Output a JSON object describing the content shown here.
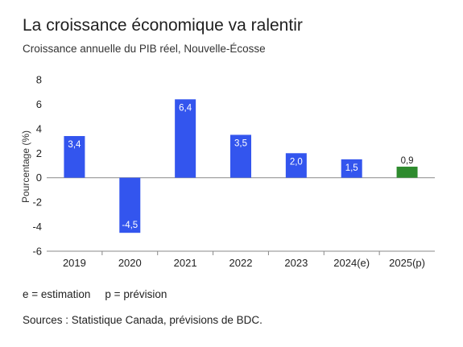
{
  "header": {
    "title": "La croissance économique va ralentir",
    "subtitle": "Croissance annuelle du PIB réel, Nouvelle-Écosse"
  },
  "legend": {
    "estimation": "e = estimation",
    "prevision": "p = prévision"
  },
  "source": "Sources : Statistique Canada, prévisions de BDC.",
  "colors": {
    "actual": "#3355ee",
    "forecast": "#2e8b2e",
    "axis": "#888888"
  },
  "chart_data": {
    "type": "bar",
    "title": "La croissance économique va ralentir",
    "subtitle": "Croissance annuelle du PIB réel, Nouvelle-Écosse",
    "ylabel": "Pourcentage (%)",
    "xlabel": "",
    "ylim": [
      -6,
      8
    ],
    "yticks": [
      8,
      6,
      4,
      2,
      0,
      -2,
      -4,
      -6
    ],
    "ytick_labels": [
      "8",
      "6",
      "4",
      "2",
      "0",
      "-2",
      "-4",
      "-6"
    ],
    "categories": [
      "2019",
      "2020",
      "2021",
      "2022",
      "2023",
      "2024(e)",
      "2025(p)"
    ],
    "values": [
      3.4,
      -4.5,
      6.4,
      3.5,
      2.0,
      1.5,
      0.9
    ],
    "value_labels": [
      "3,4",
      "-4,5",
      "6,4",
      "3,5",
      "2,0",
      "1,5",
      "0,9"
    ],
    "bar_kinds": [
      "actual",
      "actual",
      "actual",
      "actual",
      "actual",
      "actual",
      "forecast"
    ],
    "grid": false,
    "legend": "none"
  }
}
